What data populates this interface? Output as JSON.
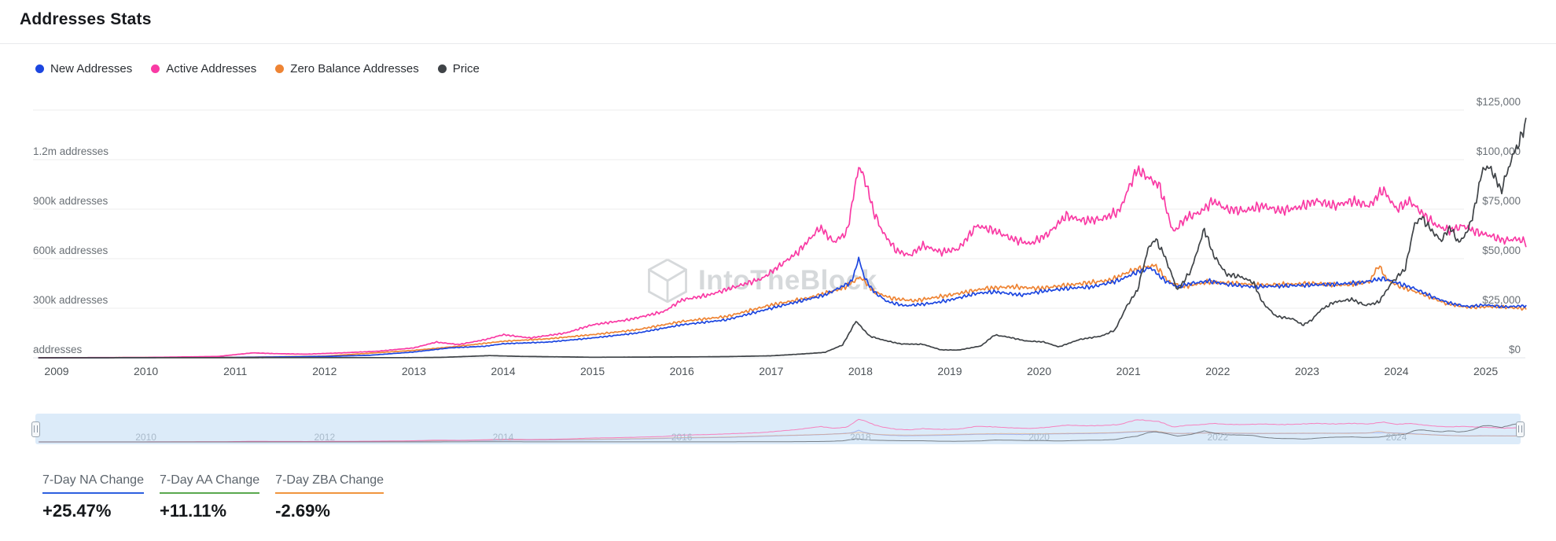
{
  "header": {
    "title": "Addresses Stats"
  },
  "legend": [
    {
      "label": "New Addresses",
      "color": "#1c46e0"
    },
    {
      "label": "Active Addresses",
      "color": "#f93aa4"
    },
    {
      "label": "Zero Balance Addresses",
      "color": "#ee8434"
    },
    {
      "label": "Price",
      "color": "#3f4347"
    }
  ],
  "watermark": {
    "text": "IntoTheBlock"
  },
  "chart_data": {
    "type": "line",
    "title": "Addresses Stats",
    "x_axis": {
      "min": 2008.8,
      "max": 2025.45,
      "tick_labels": [
        "2009",
        "2010",
        "2011",
        "2012",
        "2013",
        "2014",
        "2015",
        "2016",
        "2017",
        "2018",
        "2019",
        "2020",
        "2021",
        "2022",
        "2023",
        "2024",
        "2025"
      ],
      "tick_values": [
        2009,
        2010,
        2011,
        2012,
        2013,
        2014,
        2015,
        2016,
        2017,
        2018,
        2019,
        2020,
        2021,
        2022,
        2023,
        2024,
        2025
      ]
    },
    "left_axis": {
      "min": 0,
      "max": 1500000,
      "grid_values": [
        0,
        300000,
        600000,
        900000,
        1200000,
        1500000
      ],
      "labels": [
        "addresses",
        "300k addresses",
        "600k addresses",
        "900k addresses",
        "1.2m addresses"
      ],
      "label_values": [
        0,
        300000,
        600000,
        900000,
        1200000
      ]
    },
    "right_axis": {
      "min": 0,
      "max": 125000,
      "labels": [
        "$0",
        "$25,000",
        "$50,000",
        "$75,000",
        "$100,000",
        "$125,000"
      ],
      "label_values": [
        0,
        25000,
        50000,
        75000,
        100000,
        125000
      ]
    },
    "series": [
      {
        "name": "New Addresses",
        "color": "#1c46e0",
        "axis": "left",
        "noise_frac": 0.035,
        "seed": 1,
        "points": [
          [
            2008.8,
            0
          ],
          [
            2011,
            2000
          ],
          [
            2012,
            8000
          ],
          [
            2012.5,
            15000
          ],
          [
            2013,
            35000
          ],
          [
            2013.4,
            60000
          ],
          [
            2013.8,
            70000
          ],
          [
            2014,
            85000
          ],
          [
            2014.5,
            95000
          ],
          [
            2015,
            120000
          ],
          [
            2015.5,
            150000
          ],
          [
            2016,
            200000
          ],
          [
            2016.5,
            230000
          ],
          [
            2017,
            300000
          ],
          [
            2017.3,
            340000
          ],
          [
            2017.6,
            380000
          ],
          [
            2017.9,
            460000
          ],
          [
            2017.98,
            600000
          ],
          [
            2018.05,
            480000
          ],
          [
            2018.15,
            400000
          ],
          [
            2018.3,
            340000
          ],
          [
            2018.5,
            315000
          ],
          [
            2018.8,
            330000
          ],
          [
            2019,
            350000
          ],
          [
            2019.3,
            390000
          ],
          [
            2019.5,
            400000
          ],
          [
            2019.8,
            380000
          ],
          [
            2020,
            400000
          ],
          [
            2020.3,
            420000
          ],
          [
            2020.6,
            430000
          ],
          [
            2020.9,
            470000
          ],
          [
            2021.1,
            520000
          ],
          [
            2021.25,
            545000
          ],
          [
            2021.4,
            470000
          ],
          [
            2021.55,
            430000
          ],
          [
            2021.7,
            450000
          ],
          [
            2021.9,
            465000
          ],
          [
            2022.1,
            445000
          ],
          [
            2022.4,
            430000
          ],
          [
            2022.7,
            435000
          ],
          [
            2023,
            440000
          ],
          [
            2023.3,
            445000
          ],
          [
            2023.6,
            455000
          ],
          [
            2023.85,
            480000
          ],
          [
            2024,
            455000
          ],
          [
            2024.2,
            420000
          ],
          [
            2024.4,
            370000
          ],
          [
            2024.6,
            330000
          ],
          [
            2024.8,
            310000
          ],
          [
            2025,
            320000
          ],
          [
            2025.2,
            308000
          ],
          [
            2025.45,
            315000
          ]
        ]
      },
      {
        "name": "Active Addresses",
        "color": "#f93aa4",
        "axis": "left",
        "noise_frac": 0.04,
        "seed": 2,
        "points": [
          [
            2008.8,
            500
          ],
          [
            2010,
            2000
          ],
          [
            2010.8,
            8000
          ],
          [
            2011.2,
            30000
          ],
          [
            2011.45,
            25000
          ],
          [
            2011.8,
            22000
          ],
          [
            2012.2,
            30000
          ],
          [
            2012.6,
            40000
          ],
          [
            2013,
            60000
          ],
          [
            2013.25,
            95000
          ],
          [
            2013.5,
            80000
          ],
          [
            2013.8,
            110000
          ],
          [
            2014,
            140000
          ],
          [
            2014.3,
            120000
          ],
          [
            2014.7,
            150000
          ],
          [
            2015,
            200000
          ],
          [
            2015.4,
            230000
          ],
          [
            2015.8,
            280000
          ],
          [
            2016,
            350000
          ],
          [
            2016.3,
            380000
          ],
          [
            2016.6,
            430000
          ],
          [
            2016.9,
            480000
          ],
          [
            2017.1,
            560000
          ],
          [
            2017.3,
            640000
          ],
          [
            2017.55,
            790000
          ],
          [
            2017.7,
            700000
          ],
          [
            2017.85,
            760000
          ],
          [
            2017.98,
            1160000
          ],
          [
            2018.05,
            1080000
          ],
          [
            2018.15,
            880000
          ],
          [
            2018.25,
            760000
          ],
          [
            2018.4,
            650000
          ],
          [
            2018.55,
            620000
          ],
          [
            2018.7,
            680000
          ],
          [
            2018.9,
            640000
          ],
          [
            2019.1,
            660000
          ],
          [
            2019.3,
            800000
          ],
          [
            2019.5,
            770000
          ],
          [
            2019.7,
            720000
          ],
          [
            2019.9,
            690000
          ],
          [
            2020.1,
            750000
          ],
          [
            2020.3,
            860000
          ],
          [
            2020.5,
            830000
          ],
          [
            2020.7,
            840000
          ],
          [
            2020.9,
            890000
          ],
          [
            2021.02,
            1050000
          ],
          [
            2021.1,
            1140000
          ],
          [
            2021.2,
            1100000
          ],
          [
            2021.35,
            1040000
          ],
          [
            2021.5,
            760000
          ],
          [
            2021.65,
            850000
          ],
          [
            2021.8,
            880000
          ],
          [
            2021.95,
            950000
          ],
          [
            2022.1,
            900000
          ],
          [
            2022.3,
            890000
          ],
          [
            2022.5,
            920000
          ],
          [
            2022.7,
            890000
          ],
          [
            2022.9,
            910000
          ],
          [
            2023.1,
            950000
          ],
          [
            2023.3,
            920000
          ],
          [
            2023.5,
            950000
          ],
          [
            2023.7,
            920000
          ],
          [
            2023.85,
            1020000
          ],
          [
            2024,
            900000
          ],
          [
            2024.15,
            950000
          ],
          [
            2024.3,
            870000
          ],
          [
            2024.45,
            800000
          ],
          [
            2024.6,
            770000
          ],
          [
            2024.75,
            800000
          ],
          [
            2024.9,
            760000
          ],
          [
            2025.05,
            740000
          ],
          [
            2025.2,
            710000
          ],
          [
            2025.35,
            720000
          ],
          [
            2025.45,
            700000
          ]
        ]
      },
      {
        "name": "Zero Balance Addresses",
        "color": "#ee8434",
        "axis": "left",
        "noise_frac": 0.04,
        "seed": 3,
        "points": [
          [
            2008.8,
            0
          ],
          [
            2011,
            3000
          ],
          [
            2012,
            10000
          ],
          [
            2013,
            45000
          ],
          [
            2013.5,
            70000
          ],
          [
            2014,
            100000
          ],
          [
            2014.5,
            115000
          ],
          [
            2015,
            140000
          ],
          [
            2015.5,
            170000
          ],
          [
            2016,
            220000
          ],
          [
            2016.5,
            250000
          ],
          [
            2017,
            320000
          ],
          [
            2017.4,
            360000
          ],
          [
            2017.8,
            420000
          ],
          [
            2018,
            490000
          ],
          [
            2018.15,
            400000
          ],
          [
            2018.35,
            360000
          ],
          [
            2018.6,
            345000
          ],
          [
            2019,
            380000
          ],
          [
            2019.4,
            420000
          ],
          [
            2019.7,
            430000
          ],
          [
            2020,
            420000
          ],
          [
            2020.4,
            445000
          ],
          [
            2020.8,
            470000
          ],
          [
            2021,
            520000
          ],
          [
            2021.15,
            545000
          ],
          [
            2021.3,
            560000
          ],
          [
            2021.45,
            460000
          ],
          [
            2021.6,
            430000
          ],
          [
            2021.9,
            460000
          ],
          [
            2022.2,
            450000
          ],
          [
            2022.5,
            440000
          ],
          [
            2022.8,
            445000
          ],
          [
            2023.1,
            450000
          ],
          [
            2023.4,
            440000
          ],
          [
            2023.7,
            460000
          ],
          [
            2023.8,
            560000
          ],
          [
            2023.9,
            470000
          ],
          [
            2024.05,
            430000
          ],
          [
            2024.3,
            385000
          ],
          [
            2024.55,
            330000
          ],
          [
            2024.8,
            305000
          ],
          [
            2025.1,
            310000
          ],
          [
            2025.45,
            298000
          ]
        ]
      },
      {
        "name": "Price",
        "color": "#3f4347",
        "axis": "right",
        "noise_frac": 0.035,
        "seed": 4,
        "points": [
          [
            2008.8,
            0
          ],
          [
            2013,
            100
          ],
          [
            2013.3,
            200
          ],
          [
            2013.85,
            1100
          ],
          [
            2014.2,
            700
          ],
          [
            2015,
            280
          ],
          [
            2016,
            430
          ],
          [
            2016.5,
            600
          ],
          [
            2017,
            1000
          ],
          [
            2017.3,
            1800
          ],
          [
            2017.6,
            2700
          ],
          [
            2017.8,
            6500
          ],
          [
            2017.95,
            18500
          ],
          [
            2018.1,
            11000
          ],
          [
            2018.25,
            9000
          ],
          [
            2018.45,
            7000
          ],
          [
            2018.7,
            6800
          ],
          [
            2018.9,
            4000
          ],
          [
            2019.1,
            3900
          ],
          [
            2019.35,
            6000
          ],
          [
            2019.5,
            11500
          ],
          [
            2019.65,
            10500
          ],
          [
            2019.85,
            8500
          ],
          [
            2020.05,
            8000
          ],
          [
            2020.22,
            5500
          ],
          [
            2020.45,
            9200
          ],
          [
            2020.7,
            11000
          ],
          [
            2020.85,
            14000
          ],
          [
            2020.98,
            26000
          ],
          [
            2021.1,
            34000
          ],
          [
            2021.22,
            55000
          ],
          [
            2021.3,
            60000
          ],
          [
            2021.4,
            52000
          ],
          [
            2021.55,
            34000
          ],
          [
            2021.7,
            44000
          ],
          [
            2021.85,
            65000
          ],
          [
            2021.95,
            52000
          ],
          [
            2022.1,
            42000
          ],
          [
            2022.25,
            41000
          ],
          [
            2022.4,
            38000
          ],
          [
            2022.5,
            28000
          ],
          [
            2022.65,
            21000
          ],
          [
            2022.85,
            19500
          ],
          [
            2022.95,
            16500
          ],
          [
            2023.05,
            19000
          ],
          [
            2023.15,
            24000
          ],
          [
            2023.3,
            28000
          ],
          [
            2023.5,
            29500
          ],
          [
            2023.65,
            26500
          ],
          [
            2023.8,
            28000
          ],
          [
            2023.95,
            38000
          ],
          [
            2024.1,
            45000
          ],
          [
            2024.2,
            67000
          ],
          [
            2024.28,
            71000
          ],
          [
            2024.4,
            64000
          ],
          [
            2024.5,
            59000
          ],
          [
            2024.6,
            66000
          ],
          [
            2024.7,
            58000
          ],
          [
            2024.8,
            64000
          ],
          [
            2024.88,
            76000
          ],
          [
            2024.95,
            93000
          ],
          [
            2025.02,
            97000
          ],
          [
            2025.1,
            92000
          ],
          [
            2025.17,
            84000
          ],
          [
            2025.25,
            95000
          ],
          [
            2025.32,
            104000
          ],
          [
            2025.38,
            109000
          ],
          [
            2025.45,
            119000
          ]
        ]
      }
    ],
    "legend_position": "top-left",
    "grid": true
  },
  "brush": {
    "years": [
      "2010",
      "2012",
      "2014",
      "2016",
      "2018",
      "2020",
      "2022",
      "2024"
    ],
    "year_values": [
      2010,
      2012,
      2014,
      2016,
      2018,
      2020,
      2022,
      2024
    ]
  },
  "stats": [
    {
      "label": "7-Day NA Change",
      "value": "+25.47%",
      "color": "#2d5fe0"
    },
    {
      "label": "7-Day AA Change",
      "value": "+11.11%",
      "color": "#5aa84e"
    },
    {
      "label": "7-Day ZBA Change",
      "value": "-2.69%",
      "color": "#f0953e"
    }
  ]
}
